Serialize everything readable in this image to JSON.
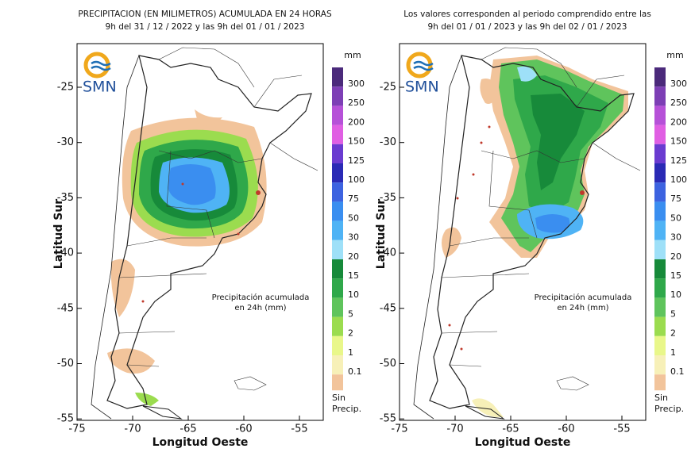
{
  "panels": [
    {
      "title": [
        "PRECIPITACION (EN MILIMETROS) ACUMULADA EN 24 HORAS",
        "9h del 31 / 12 / 2022  y las 9h del 01 / 01 / 2023"
      ],
      "logo": "SMN",
      "note": [
        "Precipitación acumulada",
        "en 24h (mm)"
      ]
    },
    {
      "title": [
        "Los valores corresponden al periodo comprendido entre las",
        "9h del 01 / 01 / 2023  y las 9h del 02 / 01 / 2023"
      ],
      "logo": "SMN",
      "note": [
        "Precipitación acumulada",
        "en 24h (mm)"
      ]
    }
  ],
  "axes": {
    "x_label": "Longitud Oeste",
    "y_label": "Latitud Sur",
    "xticks": [
      -75,
      -70,
      -65,
      -60,
      -55
    ],
    "yticks": [
      -25,
      -30,
      -35,
      -40,
      -45,
      -50,
      -55
    ]
  },
  "legend": {
    "unit": "mm",
    "levels": [
      {
        "label": 300,
        "color": "#4b2a7b"
      },
      {
        "label": 250,
        "color": "#7d3fb5"
      },
      {
        "label": 200,
        "color": "#b651d8"
      },
      {
        "label": 150,
        "color": "#e05fe3"
      },
      {
        "label": 125,
        "color": "#6a3bd0"
      },
      {
        "label": 100,
        "color": "#2a2ab5"
      },
      {
        "label": 75,
        "color": "#3d63e0"
      },
      {
        "label": 50,
        "color": "#3a8ef0"
      },
      {
        "label": 30,
        "color": "#4fb3f5"
      },
      {
        "label": 20,
        "color": "#9ee0f8"
      },
      {
        "label": 15,
        "color": "#178a3a"
      },
      {
        "label": 10,
        "color": "#2fa84a"
      },
      {
        "label": 5,
        "color": "#5fc45c"
      },
      {
        "label": 2,
        "color": "#9bdc4f"
      },
      {
        "label": 1,
        "color": "#e9f78a"
      },
      {
        "label": 0.1,
        "color": "#f7f0b8"
      }
    ],
    "no_precip": {
      "label": [
        "Sin",
        "Precip."
      ],
      "color": "#f2c49b"
    }
  }
}
